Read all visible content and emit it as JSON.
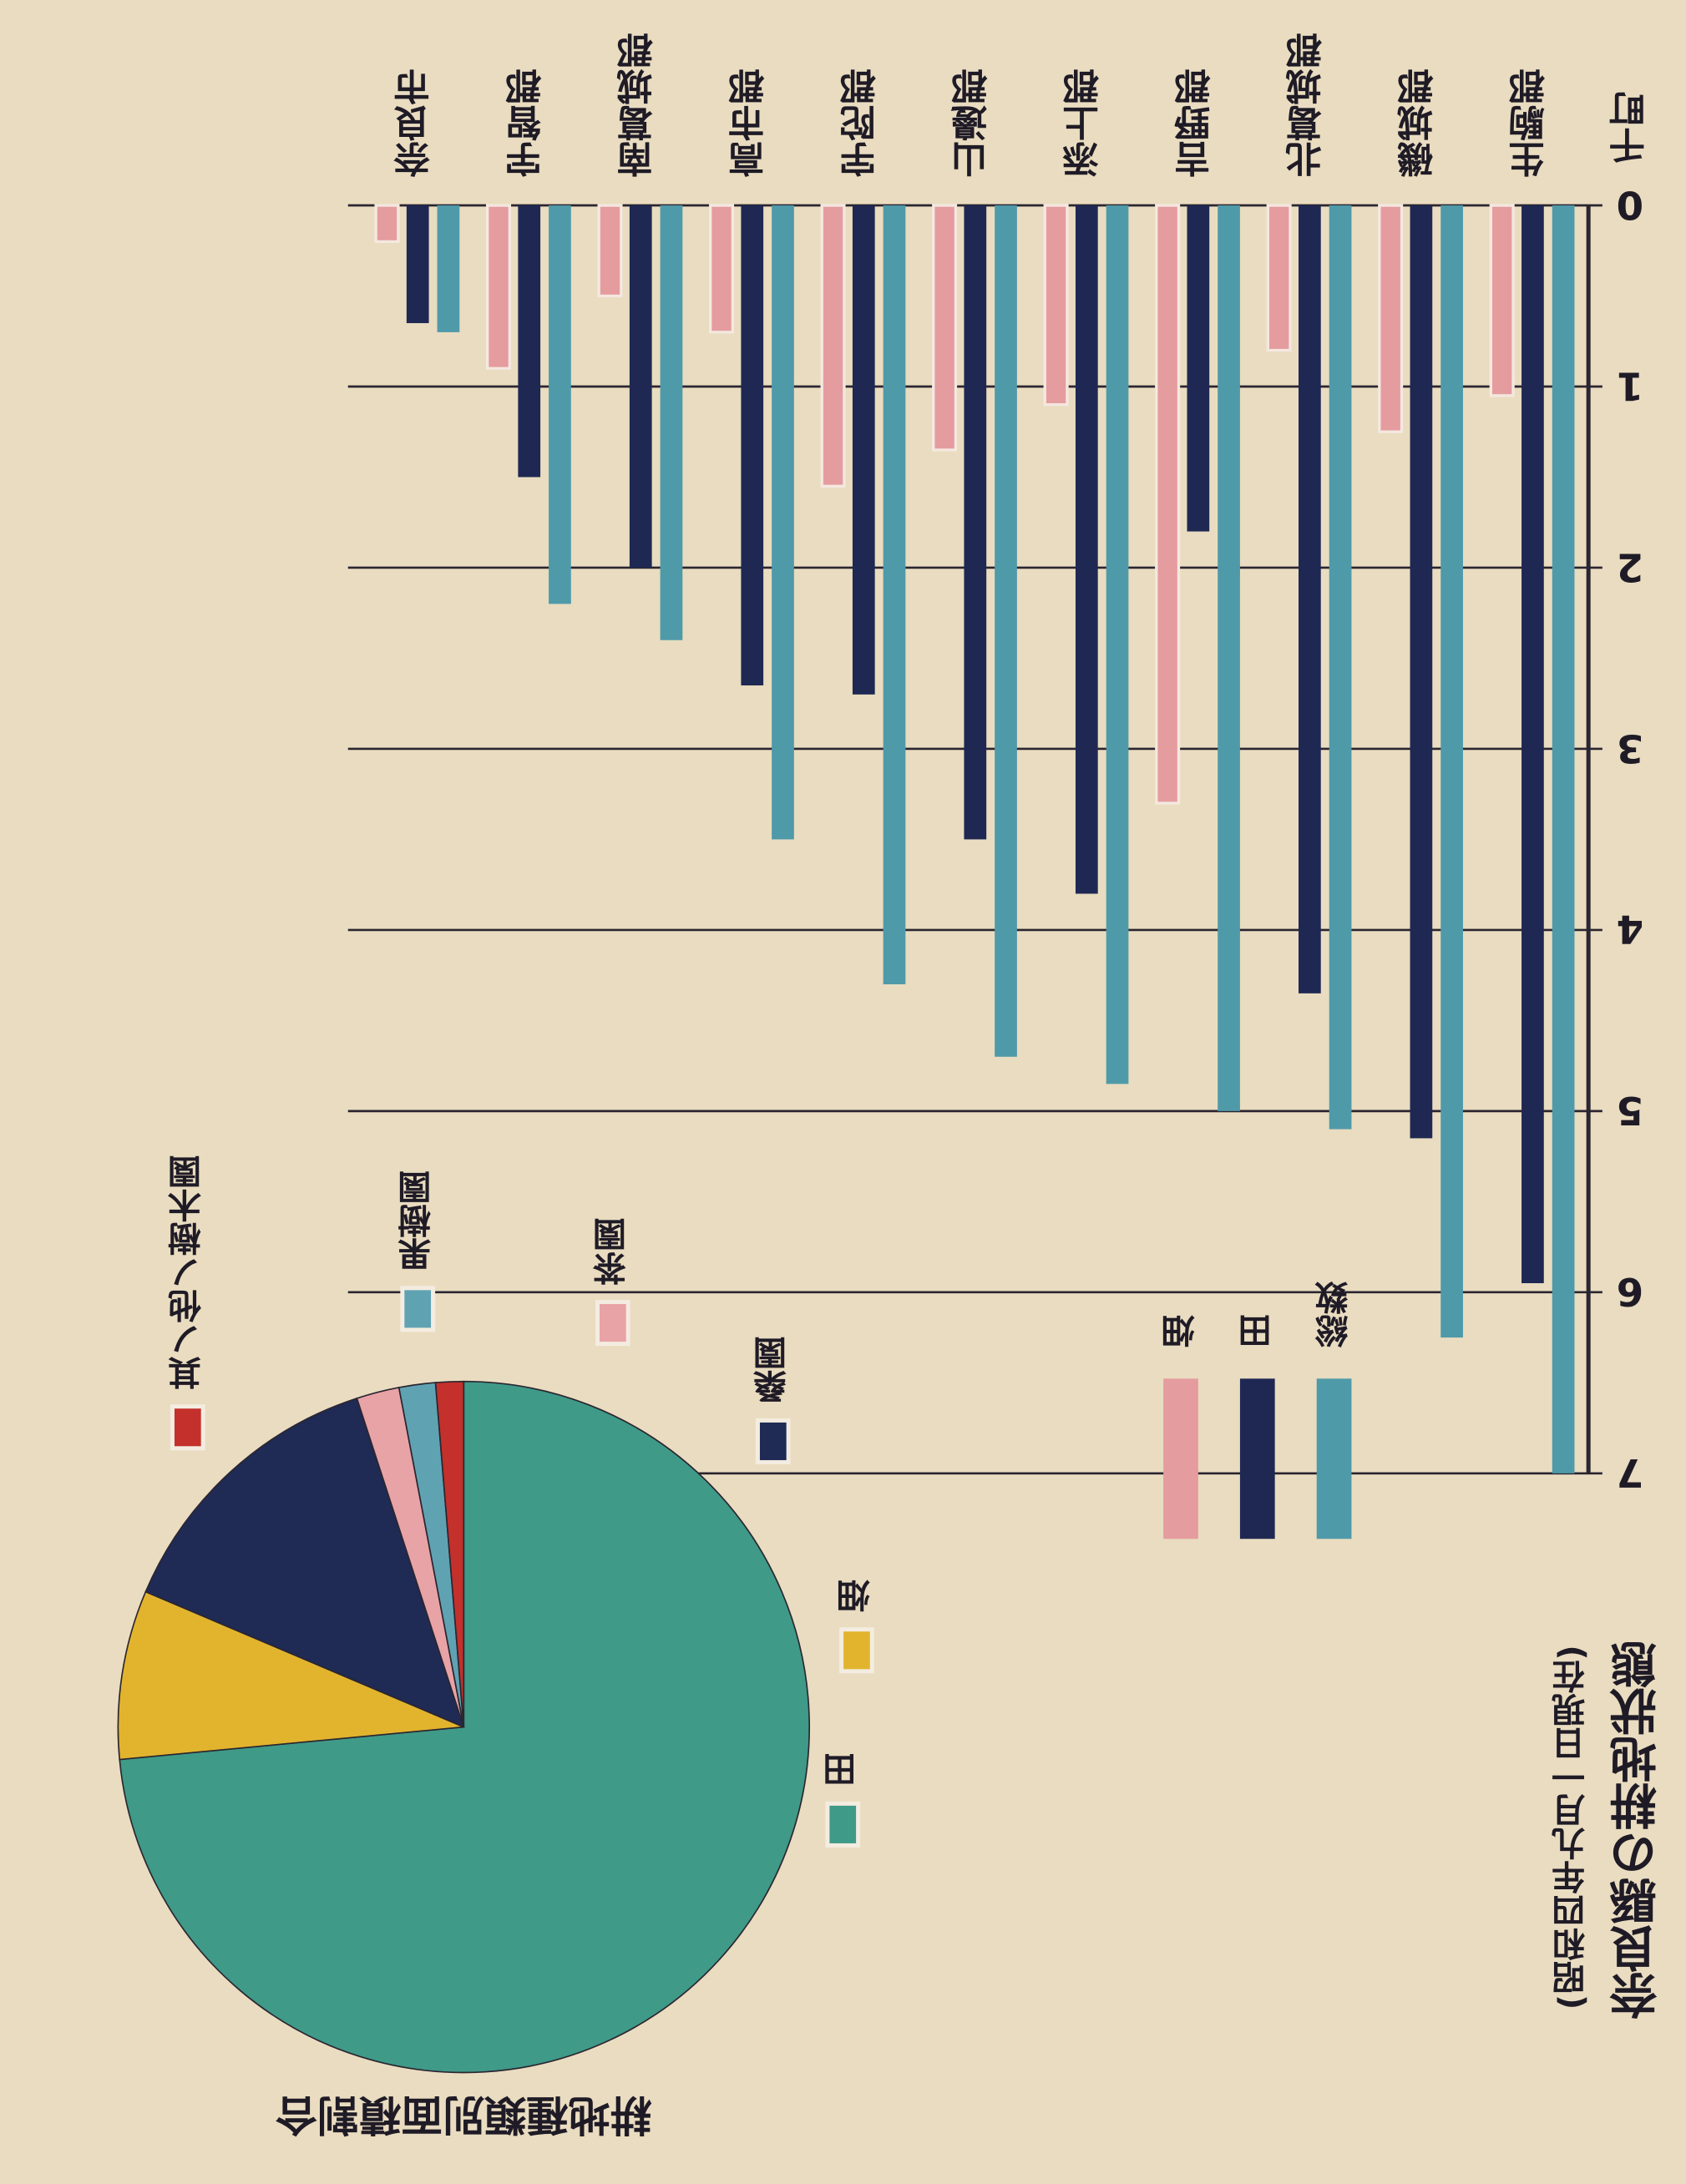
{
  "chart_data": [
    {
      "type": "bar",
      "title": "奈良縣の耕地狀態",
      "subtitle": "(昭和四年九月一日現在)",
      "y_label": "千町",
      "categories": [
        "生駒郡",
        "磯城郡",
        "北葛城郡",
        "吉野郡",
        "添上郡",
        "山邊郡",
        "宇陀郡",
        "高市郡",
        "南葛城郡",
        "宇智郡",
        "奈良市"
      ],
      "series": [
        {
          "name": "総数",
          "color": "#4f9aa9",
          "values": [
            7.0,
            6.25,
            5.1,
            5.0,
            4.85,
            4.7,
            4.3,
            3.5,
            2.4,
            2.2,
            0.7
          ]
        },
        {
          "name": "田",
          "color": "#1e2853",
          "values": [
            5.95,
            5.15,
            4.35,
            1.8,
            3.8,
            3.5,
            2.7,
            2.65,
            2.0,
            1.5,
            0.65
          ]
        },
        {
          "name": "畑",
          "color": "#e59c9e",
          "values": [
            1.05,
            1.25,
            0.8,
            3.3,
            1.1,
            1.35,
            1.55,
            0.7,
            0.5,
            0.9,
            0.2
          ]
        }
      ],
      "ylim": [
        0,
        7
      ],
      "yticks": [
        0,
        1,
        2,
        3,
        4,
        5,
        6,
        7
      ],
      "grid": true
    },
    {
      "type": "pie",
      "title": "耕地種類別面積割合",
      "labels": [
        "田",
        "畑",
        "桑園",
        "茶園",
        "果樹園",
        "其ノ他ノ樹木園"
      ],
      "values": [
        73.5,
        7.9,
        13.6,
        2.0,
        1.7,
        1.3
      ],
      "colors": [
        "#3f9a88",
        "#e2b42e",
        "#1f2a55",
        "#e8a3a6",
        "#5fa3b3",
        "#c4302b"
      ]
    }
  ]
}
